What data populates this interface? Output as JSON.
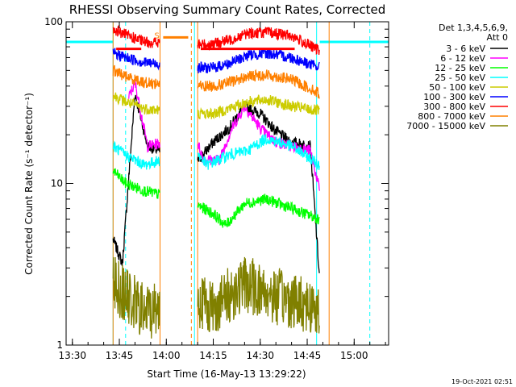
{
  "chart_data": {
    "type": "line",
    "title": "RHESSI Observing Summary Count Rates, Corrected",
    "xlabel": "Start Time (16-May-13 13:29:22)",
    "ylabel": "Corrected Count Rate (s⁻¹ detector⁻¹)",
    "yscale": "log",
    "ylim": [
      1,
      100
    ],
    "xlim": [
      "13:28",
      "15:11"
    ],
    "x_ticks": [
      "13:30",
      "13:45",
      "14:00",
      "14:15",
      "14:30",
      "14:45",
      "15:00"
    ],
    "y_ticks": [
      "1",
      "10",
      "100"
    ],
    "legend_header": [
      "Det 1,3,4,5,6,9,",
      "Att 0"
    ],
    "legend_position": "right",
    "flag_marker": "S",
    "timestamp": "19-Oct-2021 02:51",
    "series": [
      {
        "name": "3 - 6 keV",
        "color": "#000000",
        "x": [
          "13:43",
          "13:46",
          "13:50",
          "13:54",
          "14:09",
          "14:15",
          "14:20",
          "14:25",
          "14:30",
          "14:35",
          "14:40",
          "14:46",
          "14:49"
        ],
        "values": [
          4.5,
          3.2,
          36,
          17,
          13,
          18,
          22,
          30,
          27,
          21,
          18,
          17,
          2.5
        ]
      },
      {
        "name": "6 - 12 keV",
        "color": "#ff00ff",
        "x": [
          "13:48",
          "13:50",
          "13:54",
          "14:09",
          "14:12",
          "14:17",
          "14:21",
          "14:25",
          "14:30",
          "14:35",
          "14:40",
          "14:46",
          "14:49"
        ],
        "values": [
          34,
          42,
          17,
          20,
          14,
          14,
          22,
          30,
          22,
          18,
          17,
          16,
          9
        ]
      },
      {
        "name": "12 - 25 keV",
        "color": "#00ff00",
        "x": [
          "13:43",
          "13:47",
          "13:53",
          "14:09",
          "14:15",
          "14:19",
          "14:25",
          "14:32",
          "14:40",
          "14:49"
        ],
        "values": [
          12,
          10,
          9,
          7.5,
          6.5,
          5.5,
          7.5,
          8.0,
          7.0,
          6.0
        ]
      },
      {
        "name": "25 - 50 keV",
        "color": "#00ffff",
        "x": [
          "13:43",
          "13:47",
          "13:53",
          "14:09",
          "14:13",
          "14:20",
          "14:26",
          "14:32",
          "14:40",
          "14:49"
        ],
        "values": [
          17,
          15,
          13,
          16,
          13,
          15,
          16,
          19,
          17,
          13
        ]
      },
      {
        "name": "50 - 100 keV",
        "color": "#cccc00",
        "x": [
          "13:43",
          "13:47",
          "13:53",
          "14:09",
          "14:15",
          "14:20",
          "14:26",
          "14:32",
          "14:40",
          "14:49"
        ],
        "values": [
          35,
          32,
          29,
          27,
          27,
          29,
          32,
          33,
          30,
          28
        ]
      },
      {
        "name": "100 - 300 keV",
        "color": "#0000ff",
        "x": [
          "13:43",
          "13:47",
          "13:53",
          "14:09",
          "14:15",
          "14:20",
          "14:26",
          "14:32",
          "14:40",
          "14:49"
        ],
        "values": [
          64,
          60,
          56,
          52,
          52,
          55,
          62,
          64,
          60,
          52
        ]
      },
      {
        "name": "300 - 800 keV",
        "color": "#ff0000",
        "x": [
          "13:43",
          "13:47",
          "13:53",
          "14:09",
          "14:15",
          "14:20",
          "14:26",
          "14:32",
          "14:40",
          "14:49"
        ],
        "values": [
          90,
          83,
          75,
          72,
          73,
          77,
          85,
          86,
          82,
          66
        ]
      },
      {
        "name": "800 - 7000 keV",
        "color": "#ff8000",
        "x": [
          "13:43",
          "13:47",
          "13:53",
          "14:09",
          "14:15",
          "14:20",
          "14:26",
          "14:32",
          "14:40",
          "14:49"
        ],
        "values": [
          50,
          46,
          42,
          40,
          40,
          42,
          46,
          47,
          44,
          36
        ]
      },
      {
        "name": "7000 - 15000 keV",
        "color": "#808000",
        "x": [
          "13:43",
          "13:47",
          "13:53",
          "14:09",
          "14:15",
          "14:25",
          "14:35",
          "14:45",
          "14:49"
        ],
        "values": [
          2.5,
          2.0,
          1.6,
          2.0,
          1.7,
          2.4,
          2.0,
          1.8,
          1.6
        ]
      }
    ],
    "background_levels": {
      "color": "#00ffff",
      "x": [
        "13:28",
        "13:43",
        "14:49",
        "15:11"
      ],
      "values": [
        75,
        75,
        75,
        75
      ]
    },
    "attenuator_bar": {
      "color": "#ff8000",
      "x": [
        "13:59",
        "14:07"
      ],
      "value": 80
    },
    "red_bars": {
      "color": "#ff0000",
      "value": 68,
      "segments": [
        [
          "13:44",
          "13:52"
        ],
        [
          "14:11",
          "14:41"
        ]
      ]
    },
    "vertical_markers": [
      {
        "x": "13:43",
        "color": "#00ffff",
        "style": "solid"
      },
      {
        "x": "13:47",
        "color": "#00ffff",
        "style": "dashed"
      },
      {
        "x": "13:43",
        "color": "#ff8000",
        "style": "solid"
      },
      {
        "x": "13:58",
        "color": "#ff8000",
        "style": "solid"
      },
      {
        "x": "14:08",
        "color": "#ff8000",
        "style": "dashed"
      },
      {
        "x": "14:10",
        "color": "#ff8000",
        "style": "solid"
      },
      {
        "x": "14:09",
        "color": "#00ffff",
        "style": "solid"
      },
      {
        "x": "14:48",
        "color": "#00ffff",
        "style": "solid"
      },
      {
        "x": "14:52",
        "color": "#ff8000",
        "style": "solid"
      },
      {
        "x": "15:05",
        "color": "#00ffff",
        "style": "dashed"
      }
    ],
    "gaps": [
      [
        "13:58",
        "14:10"
      ]
    ]
  }
}
